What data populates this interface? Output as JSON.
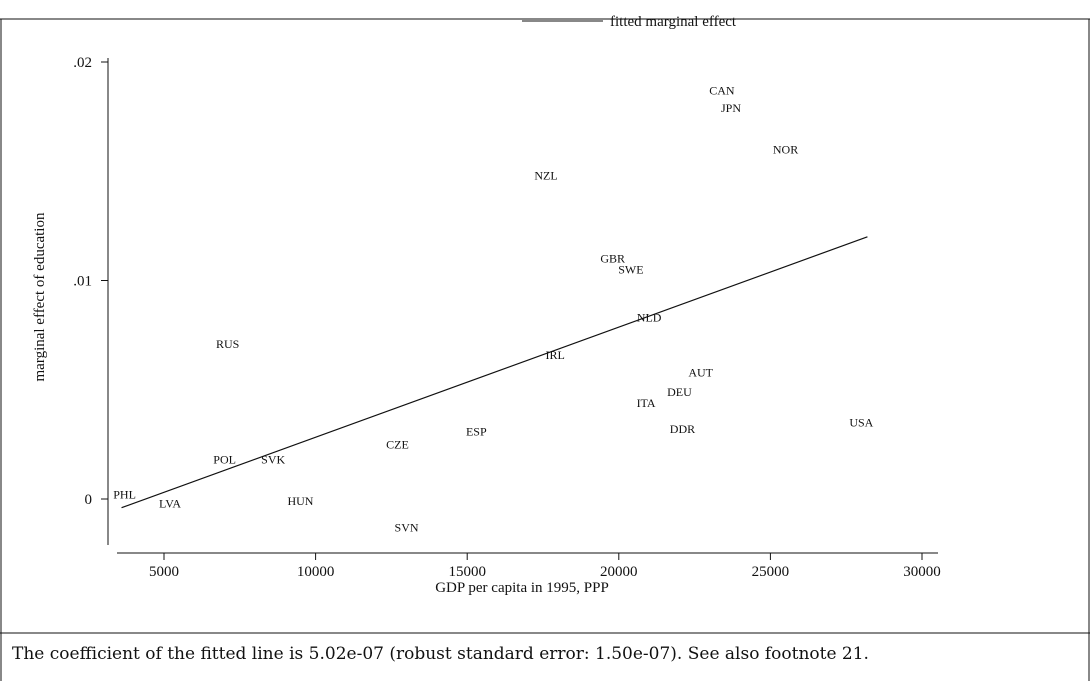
{
  "chart_data": {
    "type": "scatter",
    "title": "",
    "xlabel": "GDP per capita in 1995, PPP",
    "ylabel": "marginal effect of education",
    "xlim": [
      3000,
      30500
    ],
    "ylim": [
      -0.002,
      0.0215
    ],
    "x_ticks": [
      {
        "value": 5000,
        "label": "5000"
      },
      {
        "value": 10000,
        "label": "10000"
      },
      {
        "value": 15000,
        "label": "15000"
      },
      {
        "value": 20000,
        "label": "20000"
      },
      {
        "value": 25000,
        "label": "25000"
      },
      {
        "value": 30000,
        "label": "30000"
      }
    ],
    "y_ticks": [
      {
        "value": 0,
        "label": "0"
      },
      {
        "value": 0.01,
        "label": ".01"
      },
      {
        "value": 0.02,
        "label": ".02"
      }
    ],
    "points": [
      {
        "label": "PHL",
        "x": 3700,
        "y": 0.0002
      },
      {
        "label": "LVA",
        "x": 5200,
        "y": -0.0002
      },
      {
        "label": "POL",
        "x": 7000,
        "y": 0.0018
      },
      {
        "label": "SVK",
        "x": 8600,
        "y": 0.0018
      },
      {
        "label": "RUS",
        "x": 7100,
        "y": 0.0071
      },
      {
        "label": "HUN",
        "x": 9500,
        "y": -0.0001
      },
      {
        "label": "CZE",
        "x": 12700,
        "y": 0.0025
      },
      {
        "label": "SVN",
        "x": 13000,
        "y": -0.0013
      },
      {
        "label": "ESP",
        "x": 15300,
        "y": 0.0031
      },
      {
        "label": "NZL",
        "x": 17600,
        "y": 0.0148
      },
      {
        "label": "IRL",
        "x": 17900,
        "y": 0.0066
      },
      {
        "label": "GBR",
        "x": 19800,
        "y": 0.011
      },
      {
        "label": "SWE",
        "x": 20400,
        "y": 0.0105
      },
      {
        "label": "NLD",
        "x": 21000,
        "y": 0.0083
      },
      {
        "label": "ITA",
        "x": 20900,
        "y": 0.0044
      },
      {
        "label": "DEU",
        "x": 22000,
        "y": 0.0049
      },
      {
        "label": "AUT",
        "x": 22700,
        "y": 0.0058
      },
      {
        "label": "DDR",
        "x": 22100,
        "y": 0.0032
      },
      {
        "label": "CAN",
        "x": 23400,
        "y": 0.0187
      },
      {
        "label": "JPN",
        "x": 23700,
        "y": 0.0179
      },
      {
        "label": "NOR",
        "x": 25500,
        "y": 0.016
      },
      {
        "label": "USA",
        "x": 28000,
        "y": 0.0035
      }
    ],
    "fitted_line": {
      "x": [
        3600,
        28200
      ],
      "y": [
        -0.0004,
        0.012
      ]
    },
    "legend": {
      "label": "fitted marginal effect",
      "position": "top"
    }
  },
  "caption": "The coefficient of the fitted line is 5.02e-07 (robust standard error: 1.50e-07). See also footnote 21."
}
